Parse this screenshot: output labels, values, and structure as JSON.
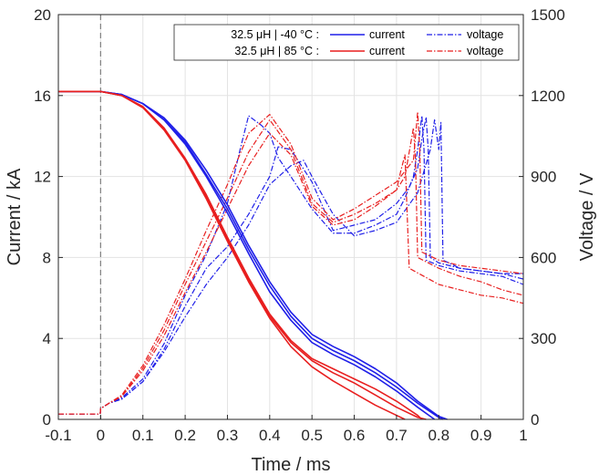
{
  "chart_data": {
    "type": "line",
    "xlabel": "Time / ms",
    "ylabel_left": "Current / kA",
    "ylabel_right": "Voltage / V",
    "xlim": [
      -0.1,
      1
    ],
    "ylim_left": [
      0,
      20
    ],
    "ylim_right": [
      0,
      1500
    ],
    "x_ticks": [
      "-0.1",
      "0",
      "0.1",
      "0.2",
      "0.3",
      "0.4",
      "0.5",
      "0.6",
      "0.7",
      "0.8",
      "0.9",
      "1"
    ],
    "y_left_ticks": [
      "0",
      "4",
      "8",
      "12",
      "16",
      "20"
    ],
    "y_right_ticks": [
      "0",
      "300",
      "600",
      "900",
      "1200",
      "1500"
    ],
    "grid": true,
    "vertical_marker_x": 0,
    "legend": {
      "placement": "top-right",
      "rows": [
        {
          "label": "32.5 μH | -40 °C :",
          "current": "current",
          "voltage": "voltage",
          "color": "#1f1fe8"
        },
        {
          "label": "32.5 μH | 85 °C :",
          "current": "current",
          "voltage": "voltage",
          "color": "#e81f1f"
        }
      ]
    },
    "series": [
      {
        "group": "32.5 μH | -40 °C",
        "kind": "current",
        "axis": "left",
        "color": "#1f1fe8",
        "style": "solid",
        "x": [
          -0.1,
          0,
          0.05,
          0.1,
          0.15,
          0.2,
          0.25,
          0.3,
          0.35,
          0.4,
          0.45,
          0.5,
          0.55,
          0.6,
          0.65,
          0.7,
          0.75,
          0.8,
          0.82
        ],
        "y": [
          16.2,
          16.2,
          16.05,
          15.6,
          14.9,
          13.8,
          12.3,
          10.6,
          8.6,
          6.8,
          5.3,
          4.2,
          3.6,
          3.1,
          2.5,
          1.8,
          0.9,
          0.15,
          0
        ]
      },
      {
        "group": "32.5 μH | -40 °C",
        "kind": "current",
        "axis": "left",
        "color": "#1f1fe8",
        "style": "solid",
        "x": [
          -0.1,
          0,
          0.05,
          0.1,
          0.15,
          0.2,
          0.25,
          0.3,
          0.35,
          0.4,
          0.45,
          0.5,
          0.55,
          0.6,
          0.65,
          0.7,
          0.75,
          0.79
        ],
        "y": [
          16.2,
          16.2,
          16.05,
          15.6,
          14.8,
          13.6,
          12.0,
          10.2,
          8.2,
          6.3,
          4.9,
          3.8,
          3.2,
          2.7,
          2.1,
          1.4,
          0.6,
          0
        ]
      },
      {
        "group": "32.5 μH | -40 °C",
        "kind": "current",
        "axis": "left",
        "color": "#1f1fe8",
        "style": "solid",
        "x": [
          -0.1,
          0,
          0.05,
          0.1,
          0.15,
          0.2,
          0.25,
          0.3,
          0.35,
          0.4,
          0.45,
          0.5,
          0.55,
          0.6,
          0.65,
          0.7,
          0.75,
          0.8,
          0.81
        ],
        "y": [
          16.2,
          16.2,
          16.05,
          15.6,
          14.8,
          13.7,
          12.1,
          10.4,
          8.4,
          6.6,
          5.1,
          4.0,
          3.4,
          2.9,
          2.3,
          1.6,
          0.8,
          0.1,
          0
        ]
      },
      {
        "group": "32.5 μH | 85 °C",
        "kind": "current",
        "axis": "left",
        "color": "#e81f1f",
        "style": "solid",
        "x": [
          -0.1,
          0,
          0.05,
          0.1,
          0.15,
          0.2,
          0.25,
          0.3,
          0.35,
          0.4,
          0.45,
          0.5,
          0.55,
          0.6,
          0.65,
          0.7,
          0.72
        ],
        "y": [
          16.2,
          16.2,
          16.0,
          15.4,
          14.3,
          12.8,
          10.9,
          8.8,
          6.8,
          5.0,
          3.6,
          2.6,
          1.9,
          1.3,
          0.7,
          0.2,
          0
        ]
      },
      {
        "group": "32.5 μH | 85 °C",
        "kind": "current",
        "axis": "left",
        "color": "#e81f1f",
        "style": "solid",
        "x": [
          -0.1,
          0,
          0.05,
          0.1,
          0.15,
          0.2,
          0.25,
          0.3,
          0.35,
          0.4,
          0.45,
          0.5,
          0.55,
          0.6,
          0.65,
          0.7,
          0.75,
          0.76
        ],
        "y": [
          16.2,
          16.2,
          16.0,
          15.45,
          14.4,
          12.9,
          11.1,
          9.0,
          7.0,
          5.2,
          3.9,
          3.0,
          2.5,
          2.0,
          1.5,
          0.9,
          0.2,
          0
        ]
      },
      {
        "group": "32.5 μH | 85 °C",
        "kind": "current",
        "axis": "left",
        "color": "#e81f1f",
        "style": "solid",
        "x": [
          -0.1,
          0,
          0.05,
          0.1,
          0.15,
          0.2,
          0.25,
          0.3,
          0.35,
          0.4,
          0.45,
          0.5,
          0.55,
          0.6,
          0.65,
          0.7,
          0.75,
          0.77
        ],
        "y": [
          16.2,
          16.2,
          16.0,
          15.45,
          14.35,
          12.85,
          11.0,
          8.9,
          6.9,
          5.1,
          3.8,
          2.9,
          2.3,
          1.8,
          1.2,
          0.6,
          0.1,
          0
        ]
      },
      {
        "group": "32.5 μH | -40 °C",
        "kind": "voltage",
        "axis": "right",
        "color": "#1f1fe8",
        "style": "dashdot",
        "x": [
          -0.1,
          -0.001,
          0,
          0.02,
          0.05,
          0.1,
          0.15,
          0.2,
          0.25,
          0.3,
          0.33,
          0.35,
          0.38,
          0.4,
          0.42,
          0.45,
          0.5,
          0.55,
          0.6,
          0.65,
          0.7,
          0.72,
          0.74,
          0.75,
          0.76,
          0.765,
          0.77,
          0.8,
          0.85,
          0.9,
          0.95,
          1.0
        ],
        "y": [
          20,
          20,
          40,
          60,
          80,
          150,
          280,
          460,
          610,
          800,
          1000,
          1125,
          1090,
          1060,
          970,
          900,
          780,
          690,
          690,
          720,
          760,
          820,
          900,
          1000,
          1125,
          1000,
          590,
          570,
          550,
          540,
          530,
          500
        ]
      },
      {
        "group": "32.5 μH | -40 °C",
        "kind": "voltage",
        "axis": "right",
        "color": "#1f1fe8",
        "style": "dashdot",
        "x": [
          -0.1,
          -0.001,
          0,
          0.02,
          0.05,
          0.1,
          0.15,
          0.2,
          0.25,
          0.3,
          0.35,
          0.4,
          0.42,
          0.45,
          0.5,
          0.55,
          0.6,
          0.65,
          0.7,
          0.73,
          0.75,
          0.76,
          0.77,
          0.775,
          0.78,
          0.8,
          0.85,
          0.9,
          0.95,
          1.0
        ],
        "y": [
          20,
          20,
          40,
          60,
          75,
          140,
          260,
          420,
          560,
          640,
          760,
          900,
          1010,
          1000,
          880,
          700,
          720,
          740,
          800,
          860,
          930,
          1040,
          1120,
          1000,
          600,
          580,
          560,
          550,
          540,
          520
        ]
      },
      {
        "group": "32.5 μH | -40 °C",
        "kind": "voltage",
        "axis": "right",
        "color": "#1f1fe8",
        "style": "dashdot",
        "x": [
          -0.1,
          -0.001,
          0,
          0.02,
          0.05,
          0.1,
          0.15,
          0.2,
          0.25,
          0.3,
          0.35,
          0.4,
          0.45,
          0.48,
          0.5,
          0.55,
          0.6,
          0.65,
          0.7,
          0.75,
          0.78,
          0.79,
          0.8,
          0.805,
          0.81,
          0.85,
          0.9,
          0.95,
          1.0
        ],
        "y": [
          20,
          20,
          40,
          60,
          75,
          140,
          250,
          380,
          500,
          600,
          720,
          870,
          940,
          960,
          900,
          760,
          680,
          700,
          730,
          840,
          1000,
          1110,
          1000,
          1100,
          590,
          560,
          550,
          540,
          540
        ]
      },
      {
        "group": "32.5 μH | 85 °C",
        "kind": "voltage",
        "axis": "right",
        "color": "#e81f1f",
        "style": "dashdot",
        "x": [
          -0.1,
          -0.001,
          0,
          0.02,
          0.05,
          0.1,
          0.15,
          0.2,
          0.25,
          0.3,
          0.35,
          0.4,
          0.45,
          0.5,
          0.55,
          0.6,
          0.65,
          0.7,
          0.72,
          0.74,
          0.75,
          0.755,
          0.76,
          0.8,
          0.85,
          0.9,
          0.95,
          1.0
        ],
        "y": [
          20,
          20,
          40,
          60,
          90,
          200,
          350,
          520,
          700,
          870,
          1060,
          1130,
          1020,
          820,
          740,
          780,
          830,
          880,
          920,
          960,
          1140,
          1000,
          620,
          590,
          570,
          560,
          550,
          540
        ]
      },
      {
        "group": "32.5 μH | 85 °C",
        "kind": "voltage",
        "axis": "right",
        "color": "#e81f1f",
        "style": "dashdot",
        "x": [
          -0.1,
          -0.001,
          0,
          0.02,
          0.05,
          0.1,
          0.15,
          0.2,
          0.25,
          0.3,
          0.35,
          0.4,
          0.45,
          0.5,
          0.55,
          0.6,
          0.65,
          0.7,
          0.72,
          0.74,
          0.745,
          0.75,
          0.8,
          0.85,
          0.9,
          0.95,
          1.0
        ],
        "y": [
          20,
          20,
          40,
          60,
          85,
          190,
          330,
          500,
          660,
          820,
          990,
          1110,
          1000,
          800,
          730,
          760,
          800,
          850,
          900,
          1080,
          960,
          600,
          560,
          530,
          510,
          480,
          460
        ]
      },
      {
        "group": "32.5 μH | 85 °C",
        "kind": "voltage",
        "axis": "right",
        "color": "#e81f1f",
        "style": "dashdot",
        "x": [
          -0.1,
          -0.001,
          0,
          0.02,
          0.05,
          0.1,
          0.15,
          0.2,
          0.25,
          0.3,
          0.35,
          0.4,
          0.45,
          0.5,
          0.55,
          0.6,
          0.65,
          0.7,
          0.71,
          0.72,
          0.73,
          0.8,
          0.85,
          0.9,
          0.95,
          1.0
        ],
        "y": [
          20,
          20,
          40,
          60,
          85,
          180,
          310,
          470,
          620,
          780,
          940,
          1060,
          980,
          790,
          720,
          740,
          790,
          850,
          920,
          980,
          560,
          500,
          480,
          460,
          450,
          430
        ]
      }
    ]
  }
}
